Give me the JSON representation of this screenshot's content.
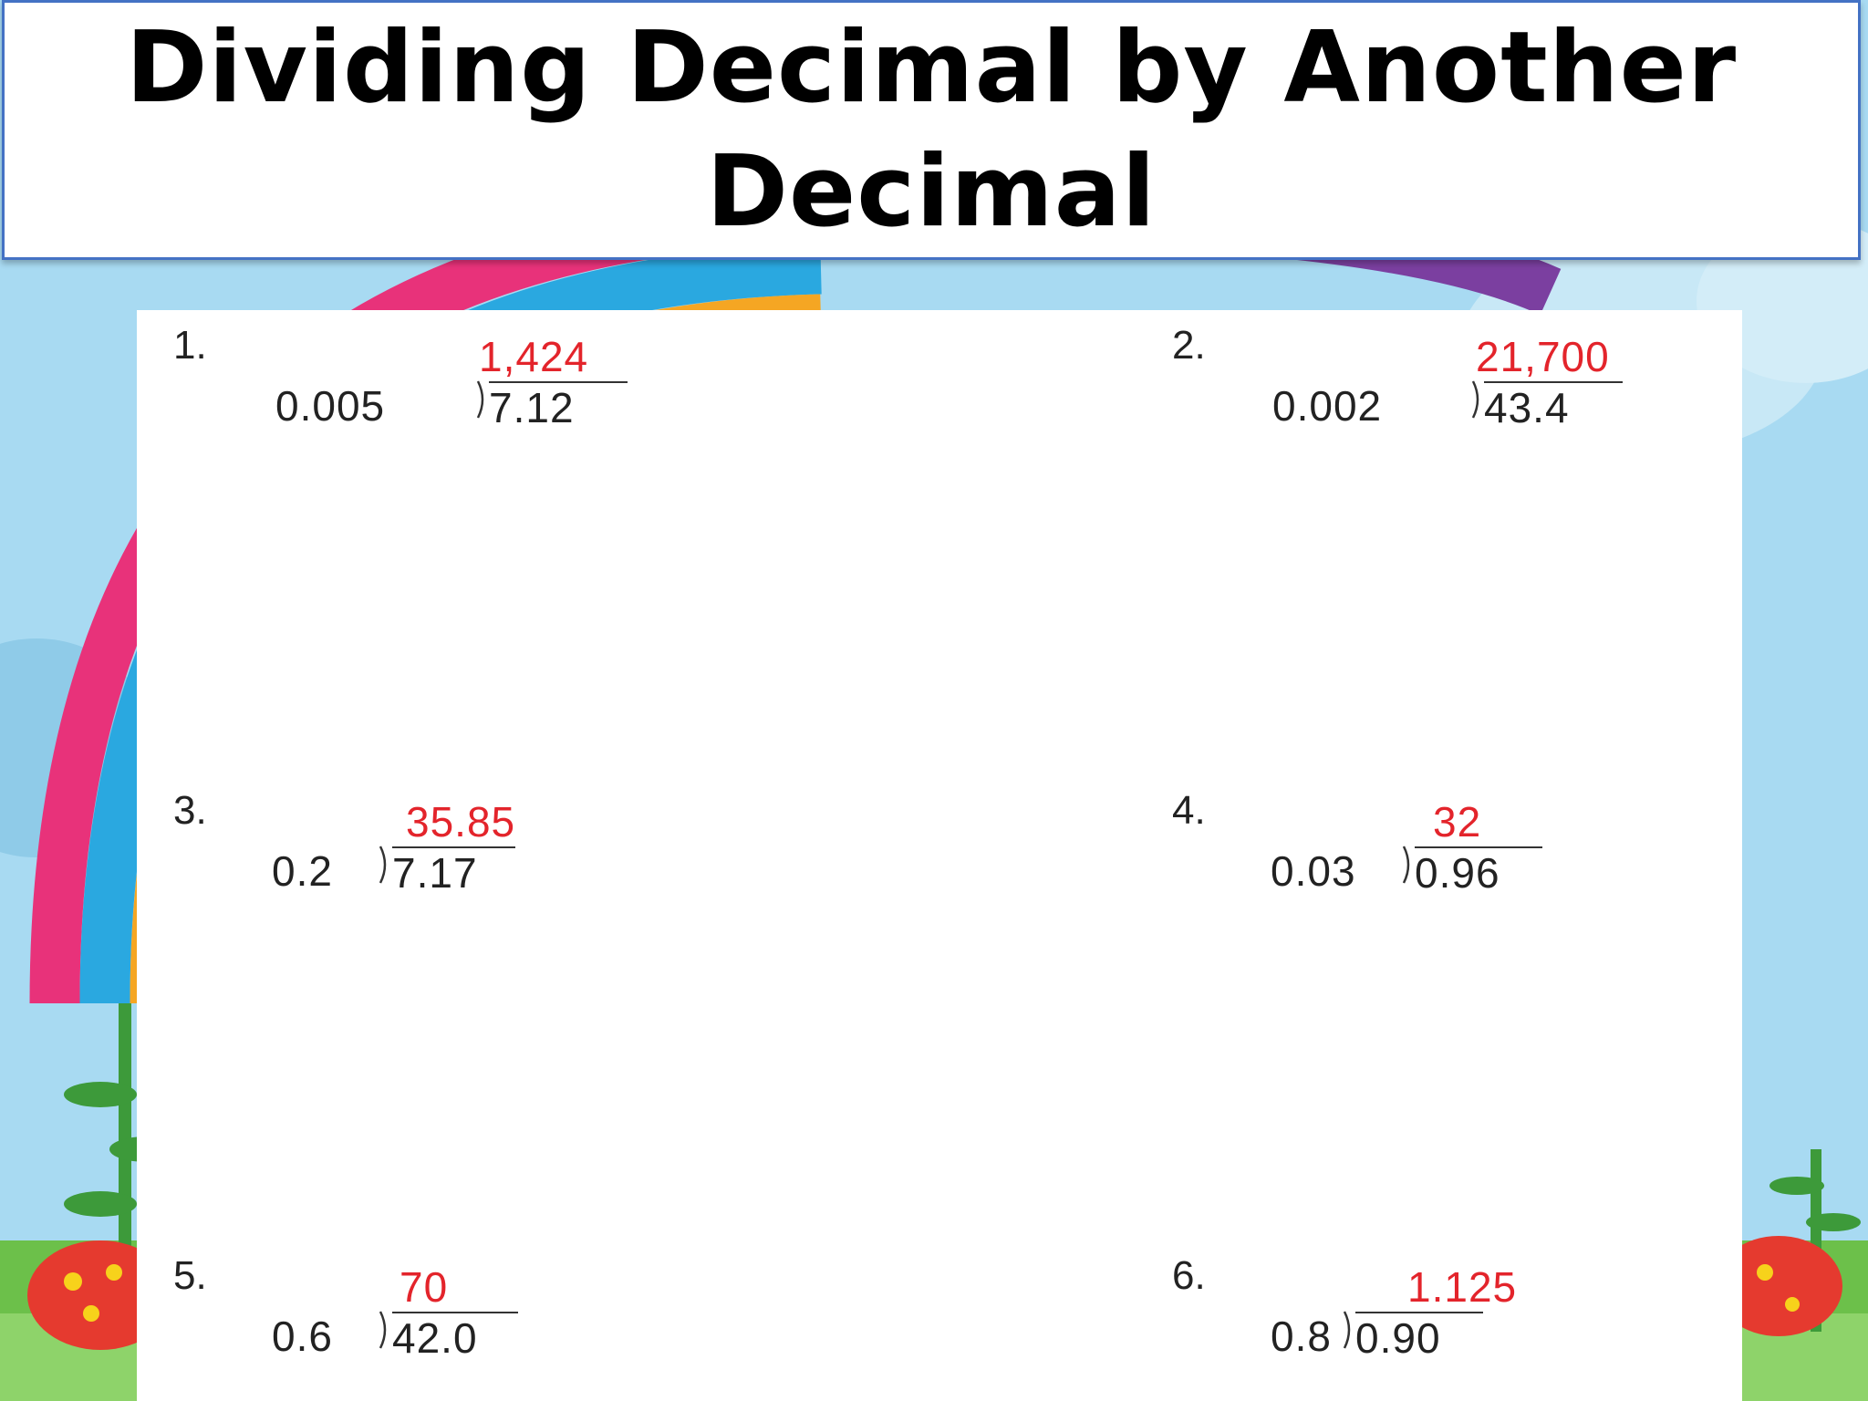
{
  "slide": {
    "title": "Dividing Decimal by Another Decimal"
  },
  "problems": [
    {
      "number": "1.",
      "divisor": "0.005",
      "dividend": "7.12",
      "quotient": "1,424"
    },
    {
      "number": "2.",
      "divisor": "0.002",
      "dividend": "43.4",
      "quotient": "21,700"
    },
    {
      "number": "3.",
      "divisor": "0.2",
      "dividend": "7.17",
      "quotient": "35.85"
    },
    {
      "number": "4.",
      "divisor": "0.03",
      "dividend": "0.96",
      "quotient": "32"
    },
    {
      "number": "5.",
      "divisor": "0.6",
      "dividend": "42.0",
      "quotient": "70"
    },
    {
      "number": "6.",
      "divisor": "0.8",
      "dividend": "0.90",
      "quotient": "1.125"
    }
  ],
  "colors": {
    "title_border": "#4472c4",
    "answer": "#e3242b",
    "sky": "#a8daf2"
  }
}
